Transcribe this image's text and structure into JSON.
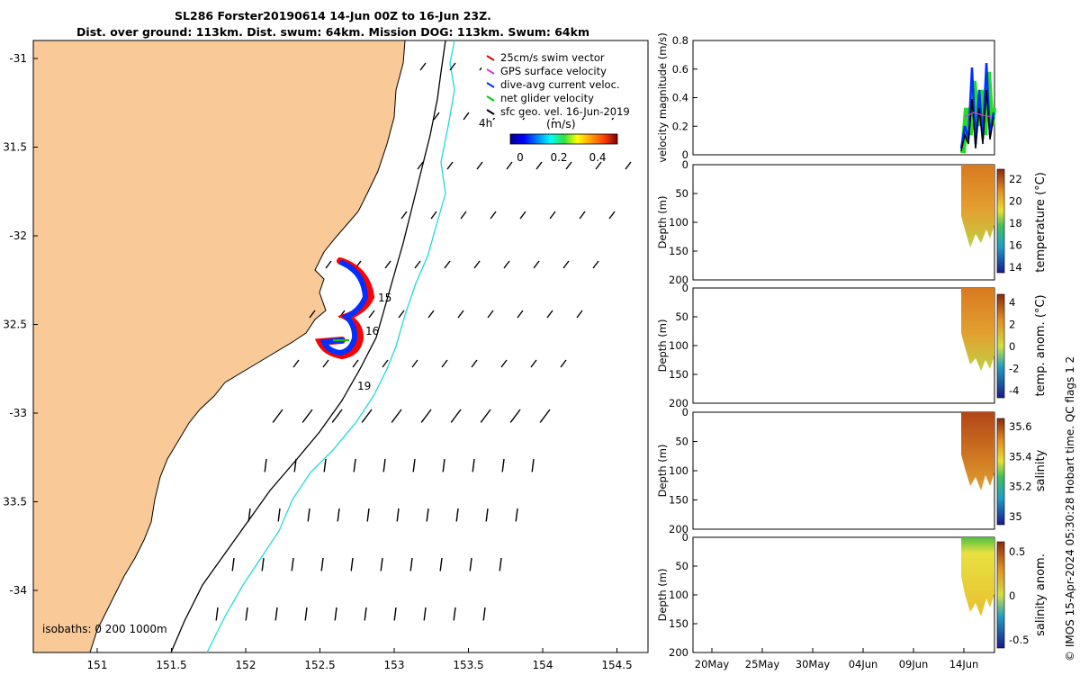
{
  "title": {
    "line1": "SL286 Forster20190614 14-Jun 00Z to 16-Jun 23Z.",
    "line2": "Dist. over ground: 113km. Dist. swum: 64km. Mission DOG: 113km. Swum: 64km"
  },
  "map": {
    "lat_ticks": [
      "-31",
      "31.5",
      "-32",
      "32.5",
      "-33",
      "33.5",
      "-34"
    ],
    "lon_ticks": [
      "151",
      "151.5",
      "152",
      "152.5",
      "153",
      "153.5",
      "154",
      "154.5"
    ],
    "legend": {
      "items": [
        {
          "label": "25cm/s swim vector",
          "color": "#e00000",
          "icon": "arrow-icon"
        },
        {
          "label": "GPS surface velocity",
          "color": "#d040d0",
          "icon": "arrow-icon"
        },
        {
          "label": "dive-avg current veloc.",
          "color": "#0030ff",
          "icon": "arrow-icon"
        },
        {
          "label": "net glider velocity",
          "color": "#00cc00",
          "icon": "arrow-icon"
        },
        {
          "label": "sfc geo. vel. 16-Jun-2019",
          "color": "#000000",
          "icon": "arrow-icon"
        }
      ],
      "time_label": "4h"
    },
    "colorbar": {
      "unit": "(m/s)",
      "ticks": [
        "0",
        "0.2",
        "0.4"
      ]
    },
    "day_labels": [
      "15",
      "16",
      "19"
    ],
    "isobaths_label": "isobaths: 0   200  1000m",
    "colors": {
      "land": "#f9c997",
      "isobath_200": "#000000",
      "isobath_1000": "#22d8d8",
      "track": "#0000ff",
      "track_edge": "#ff0000"
    }
  },
  "panels": [
    {
      "ylabel": "velocity magnitude (m/s)",
      "yticks": [
        "0",
        "0.2",
        "0.4",
        "0.6",
        "0.8"
      ]
    },
    {
      "ylabel": "Depth (m)",
      "yticks": [
        "0",
        "50",
        "100",
        "150",
        "200"
      ],
      "cbar_label": "temperature (°C)",
      "cbar_ticks": [
        "22",
        "20",
        "18",
        "16",
        "14"
      ]
    },
    {
      "ylabel": "Depth (m)",
      "yticks": [
        "0",
        "50",
        "100",
        "150",
        "200"
      ],
      "cbar_label": "temp. anom. (°C)",
      "cbar_ticks": [
        "4",
        "2",
        "0",
        "-2",
        "-4"
      ]
    },
    {
      "ylabel": "Depth (m)",
      "yticks": [
        "0",
        "50",
        "100",
        "150",
        "200"
      ],
      "cbar_label": "salinity",
      "cbar_ticks": [
        "35.6",
        "35.4",
        "35.2",
        "35"
      ]
    },
    {
      "ylabel": "Depth (m)",
      "yticks": [
        "0",
        "50",
        "100",
        "150",
        "200"
      ],
      "cbar_label": "salinity anom.",
      "cbar_ticks": [
        "0.5",
        "0",
        "-0.5"
      ]
    }
  ],
  "time_axis": [
    "20May",
    "25May",
    "30May",
    "04Jun",
    "09Jun",
    "14Jun"
  ],
  "credit": "© IMOS 15-Apr-2024 05:30:28 Hobart time. QC flags 1  2"
}
